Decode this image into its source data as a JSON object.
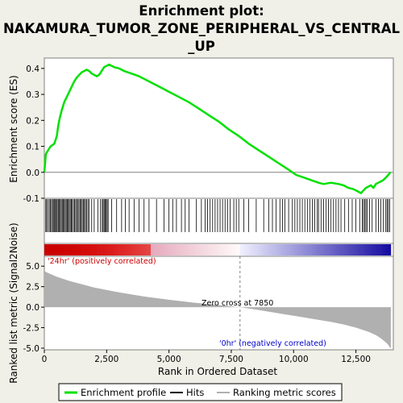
{
  "chart_data": {
    "type": "line",
    "title": [
      "Enrichment plot:",
      "NAKAMURA_TUMOR_ZONE_PERIPHERAL_VS_CENTRAL",
      "_UP"
    ],
    "xlabel": "Rank in Ordered Dataset",
    "es_ylabel": "Enrichment score (ES)",
    "metric_ylabel": "Ranked list metric (Signal2Noise)",
    "xlim": [
      0,
      14000
    ],
    "es_ylim": [
      -0.1,
      0.44
    ],
    "metric_ylim": [
      -5.2,
      6.2
    ],
    "x_ticks": [
      0,
      2500,
      5000,
      7500,
      10000,
      12500
    ],
    "x_tick_labels": [
      "0",
      "2,500",
      "5,000",
      "7,500",
      "10,000",
      "12,500"
    ],
    "es_ticks": [
      -0.1,
      0.0,
      0.1,
      0.2,
      0.3,
      0.4
    ],
    "es_tick_labels": [
      "-0.1",
      "0.0",
      "0.1",
      "0.2",
      "0.3",
      "0.4"
    ],
    "metric_ticks": [
      -5.0,
      -2.5,
      0.0,
      2.5,
      5.0
    ],
    "metric_tick_labels": [
      "-5.0",
      "-2.5",
      "0.0",
      "2.5",
      "5.0"
    ],
    "total_genes": 13900,
    "zero_cross": 7850,
    "zero_cross_label": "Zero cross at 7850",
    "pos_label": "'24hr' (positively correlated)",
    "neg_label": "'0hr' (negatively correlated)",
    "colors": {
      "es_line": "#00e000",
      "hits": "#000000",
      "metric_fill": "#b0b0b0",
      "zero_line": "#808080",
      "background": "#f0f0e8",
      "plot_bg": "#ffffff"
    },
    "series": [
      {
        "name": "Enrichment profile",
        "x": [
          0,
          60,
          120,
          250,
          400,
          500,
          560,
          620,
          700,
          800,
          900,
          1000,
          1100,
          1200,
          1300,
          1400,
          1500,
          1600,
          1700,
          1800,
          1900,
          2000,
          2100,
          2200,
          2300,
          2400,
          2500,
          2600,
          2700,
          2800,
          3000,
          3200,
          3500,
          3800,
          4000,
          4300,
          4600,
          5000,
          5400,
          5800,
          6200,
          6600,
          7000,
          7400,
          7800,
          8200,
          8600,
          9000,
          9400,
          9800,
          10100,
          10400,
          10700,
          11000,
          11200,
          11500,
          11800,
          12000,
          12200,
          12400,
          12600,
          12700,
          12800,
          12900,
          13000,
          13100,
          13200,
          13300,
          13400,
          13500,
          13600,
          13700,
          13800,
          13880
        ],
        "values": [
          0.0,
          0.07,
          0.08,
          0.1,
          0.11,
          0.14,
          0.18,
          0.21,
          0.24,
          0.27,
          0.29,
          0.31,
          0.33,
          0.35,
          0.365,
          0.375,
          0.385,
          0.39,
          0.395,
          0.39,
          0.38,
          0.375,
          0.37,
          0.375,
          0.39,
          0.405,
          0.41,
          0.415,
          0.41,
          0.405,
          0.4,
          0.39,
          0.38,
          0.37,
          0.36,
          0.345,
          0.33,
          0.31,
          0.29,
          0.27,
          0.245,
          0.22,
          0.195,
          0.165,
          0.14,
          0.11,
          0.085,
          0.06,
          0.035,
          0.01,
          -0.01,
          -0.02,
          -0.03,
          -0.04,
          -0.045,
          -0.04,
          -0.045,
          -0.05,
          -0.06,
          -0.065,
          -0.075,
          -0.08,
          -0.07,
          -0.06,
          -0.055,
          -0.05,
          -0.06,
          -0.045,
          -0.04,
          -0.035,
          -0.03,
          -0.02,
          -0.01,
          0.0
        ]
      }
    ],
    "hits": [
      60,
      90,
      140,
      200,
      240,
      290,
      330,
      380,
      410,
      450,
      480,
      520,
      560,
      600,
      640,
      680,
      720,
      760,
      800,
      840,
      880,
      920,
      960,
      1000,
      1040,
      1080,
      1120,
      1170,
      1210,
      1260,
      1300,
      1350,
      1390,
      1440,
      1480,
      1520,
      1570,
      1610,
      1650,
      1700,
      1750,
      1800,
      1900,
      2000,
      2150,
      2250,
      2320,
      2360,
      2400,
      2440,
      2480,
      2520,
      2560,
      2700,
      2900,
      3100,
      3250,
      3400,
      3600,
      3800,
      4000,
      4200,
      4500,
      4800,
      5000,
      5150,
      5300,
      5500,
      5650,
      5800,
      6100,
      6300,
      6450,
      6550,
      6650,
      6750,
      6850,
      6950,
      7050,
      7150,
      7250,
      7350,
      7450,
      7600,
      7700,
      7800,
      8000,
      8200,
      8500,
      8800,
      9000,
      9150,
      9300,
      9450,
      9550,
      9650,
      9800,
      9950,
      10050,
      10150,
      10250,
      10350,
      10450,
      10550,
      10650,
      10750,
      10850,
      10950,
      11000,
      11100,
      11200,
      11300,
      11400,
      11500,
      11600,
      11700,
      11800,
      11900,
      12050,
      12200,
      12350,
      12500,
      12650,
      12750,
      12800,
      12850,
      12900,
      12950,
      13050,
      13150,
      13300,
      13400,
      13500,
      13600,
      13700,
      13750,
      13800,
      13850
    ],
    "metric": {
      "x": [
        0,
        50,
        200,
        500,
        1000,
        1500,
        2000,
        3000,
        4000,
        5000,
        6000,
        7000,
        7850,
        8500,
        9500,
        10500,
        11500,
        12000,
        12500,
        13000,
        13300,
        13500,
        13700,
        13800,
        13850,
        13900
      ],
      "values": [
        4.5,
        4.3,
        4.1,
        3.7,
        3.2,
        2.8,
        2.4,
        1.8,
        1.3,
        0.9,
        0.55,
        0.25,
        0.0,
        -0.3,
        -0.8,
        -1.3,
        -1.8,
        -2.1,
        -2.5,
        -3.0,
        -3.4,
        -3.8,
        -4.3,
        -4.6,
        -4.9,
        -5.0
      ]
    }
  },
  "legend": {
    "items": [
      {
        "label": "Enrichment profile",
        "color": "#00e000"
      },
      {
        "label": "Hits",
        "color": "#000000"
      },
      {
        "label": "Ranking metric scores",
        "color": "#b0b0b0"
      }
    ]
  }
}
